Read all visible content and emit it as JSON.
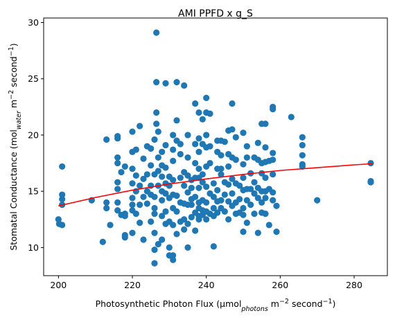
{
  "chart_data": {
    "type": "scatter",
    "title": "AMI PPFD x g_S",
    "xlabel": {
      "prefix": "Photosynthetic Photon Flux (µmol",
      "sub": "photons",
      "mid": " m",
      "sup1": "−2",
      "mid2": " second",
      "sup2": "−1",
      "suffix": ")"
    },
    "ylabel": {
      "prefix": "Stomatal Conductance (mol",
      "sub": "water",
      "mid": " m",
      "sup1": "−2",
      "mid2": " second",
      "sup2": "−1",
      "suffix": ")"
    },
    "xlim": [
      196,
      289
    ],
    "ylim": [
      7.5,
      30.4
    ],
    "xticks": [
      200,
      220,
      240,
      260,
      280
    ],
    "yticks": [
      10,
      15,
      20,
      25,
      30
    ],
    "point_color": "#1f77b4",
    "fit_color": "#ff0000",
    "fit_curve": {
      "x": [
        200,
        210,
        220,
        230,
        240,
        250,
        260,
        270,
        280,
        285
      ],
      "y": [
        13.7,
        14.45,
        15.1,
        15.65,
        16.1,
        16.5,
        16.85,
        17.1,
        17.35,
        17.45
      ]
    },
    "points": [
      [
        200,
        12.5
      ],
      [
        200.2,
        12.1
      ],
      [
        201,
        12
      ],
      [
        201,
        13.8
      ],
      [
        201,
        14.3
      ],
      [
        201,
        14.7
      ],
      [
        201,
        17.2
      ],
      [
        209,
        14.2
      ],
      [
        212,
        10.5
      ],
      [
        213,
        13.5
      ],
      [
        213,
        14.0
      ],
      [
        213,
        19.6
      ],
      [
        214,
        12.0
      ],
      [
        216,
        15.2
      ],
      [
        216,
        15.8
      ],
      [
        216,
        17.5
      ],
      [
        216,
        18.0
      ],
      [
        216,
        19.7
      ],
      [
        216,
        19.9
      ],
      [
        216,
        14.0
      ],
      [
        216,
        13.3
      ],
      [
        217,
        12.9
      ],
      [
        217,
        16.7
      ],
      [
        218,
        12.8
      ],
      [
        218,
        13.0
      ],
      [
        218,
        11.1
      ],
      [
        218,
        10.9
      ],
      [
        218,
        17.2
      ],
      [
        220,
        13.3
      ],
      [
        220,
        14.4
      ],
      [
        220,
        15.7
      ],
      [
        220,
        17.0
      ],
      [
        220,
        18.5
      ],
      [
        220,
        20.3
      ],
      [
        220,
        13.8
      ],
      [
        220,
        11.3
      ],
      [
        221,
        13.0
      ],
      [
        221,
        15.0
      ],
      [
        221,
        16.4
      ],
      [
        221,
        18.7
      ],
      [
        222,
        12.2
      ],
      [
        222,
        15.5
      ],
      [
        222,
        13.8
      ],
      [
        222,
        20.8
      ],
      [
        223,
        10.7
      ],
      [
        223,
        14.5
      ],
      [
        223,
        16.1
      ],
      [
        223,
        17.9
      ],
      [
        224,
        13.9
      ],
      [
        224,
        15.0
      ],
      [
        224,
        16.5
      ],
      [
        224,
        19.0
      ],
      [
        225,
        12.3
      ],
      [
        225,
        14.7
      ],
      [
        225,
        15.5
      ],
      [
        225,
        17.3
      ],
      [
        225,
        18.8
      ],
      [
        226,
        13.5
      ],
      [
        226,
        16.5
      ],
      [
        226,
        19.6
      ],
      [
        226,
        8.6
      ],
      [
        226,
        9.8
      ],
      [
        226,
        11.3
      ],
      [
        226,
        13.0
      ],
      [
        226.5,
        29.1
      ],
      [
        226.5,
        24.7
      ],
      [
        226.5,
        22.0
      ],
      [
        226.5,
        21.0
      ],
      [
        226,
        14.5
      ],
      [
        227,
        15.5
      ],
      [
        227,
        16.8
      ],
      [
        227,
        20.3
      ],
      [
        227,
        18.0
      ],
      [
        227,
        10.3
      ],
      [
        228,
        10.7
      ],
      [
        228,
        12.8
      ],
      [
        228,
        14.2
      ],
      [
        228,
        15.0
      ],
      [
        228,
        16.3
      ],
      [
        228,
        17.3
      ],
      [
        228,
        18.5
      ],
      [
        229,
        12.1
      ],
      [
        229,
        13.2
      ],
      [
        229,
        14.8
      ],
      [
        229,
        15.7
      ],
      [
        229,
        17.1
      ],
      [
        229,
        19.1
      ],
      [
        229,
        24.6
      ],
      [
        230,
        9.3
      ],
      [
        230,
        10.0
      ],
      [
        230,
        12.3
      ],
      [
        230,
        14.4
      ],
      [
        230,
        15.5
      ],
      [
        230,
        16.3
      ],
      [
        231,
        8.9
      ],
      [
        231,
        9.3
      ],
      [
        231,
        12.0
      ],
      [
        231,
        13.5
      ],
      [
        231,
        14.7
      ],
      [
        231,
        16.0
      ],
      [
        231,
        17.7
      ],
      [
        231,
        18.7
      ],
      [
        231,
        20.0
      ],
      [
        232,
        24.7
      ],
      [
        232,
        21.3
      ],
      [
        232,
        19.5
      ],
      [
        232,
        14.6
      ],
      [
        232,
        13.2
      ],
      [
        232,
        11.2
      ],
      [
        233,
        12.3
      ],
      [
        233,
        14.0
      ],
      [
        233,
        16.2
      ],
      [
        233,
        18.3
      ],
      [
        233,
        19.2
      ],
      [
        234,
        24.4
      ],
      [
        234,
        16.7
      ],
      [
        234,
        15.5
      ],
      [
        234,
        13.9
      ],
      [
        234,
        12.5
      ],
      [
        234,
        11.6
      ],
      [
        235,
        10.0
      ],
      [
        235,
        12.1
      ],
      [
        235,
        13.8
      ],
      [
        235,
        14.9
      ],
      [
        235,
        16.4
      ],
      [
        235,
        18.0
      ],
      [
        235,
        20.0
      ],
      [
        236,
        13.8
      ],
      [
        236,
        15.3
      ],
      [
        236,
        16.0
      ],
      [
        236,
        14.3
      ],
      [
        236,
        12.7
      ],
      [
        237,
        22.8
      ],
      [
        237,
        19.2
      ],
      [
        237,
        17.5
      ],
      [
        237,
        16.2
      ],
      [
        237,
        14.5
      ],
      [
        237,
        13.1
      ],
      [
        237,
        11.5
      ],
      [
        238,
        12.5
      ],
      [
        238,
        13.5
      ],
      [
        238,
        14.0
      ],
      [
        238,
        15.3
      ],
      [
        238,
        16.2
      ],
      [
        238,
        17.0
      ],
      [
        238,
        18.5
      ],
      [
        238,
        19.7
      ],
      [
        238,
        22.0
      ],
      [
        238,
        12.8
      ],
      [
        239,
        21.4
      ],
      [
        239,
        19.2
      ],
      [
        239,
        16.5
      ],
      [
        239,
        15.8
      ],
      [
        239,
        14.2
      ],
      [
        239,
        13.3
      ],
      [
        239,
        12.9
      ],
      [
        240,
        23.3
      ],
      [
        240,
        22.0
      ],
      [
        240,
        20.0
      ],
      [
        240,
        18.9
      ],
      [
        240,
        17.2
      ],
      [
        240,
        15.4
      ],
      [
        240,
        14.0
      ],
      [
        240,
        13.2
      ],
      [
        240,
        12.5
      ],
      [
        241,
        21.9
      ],
      [
        241,
        19.0
      ],
      [
        241,
        17.5
      ],
      [
        241,
        14.8
      ],
      [
        241,
        13.0
      ],
      [
        242,
        15.7
      ],
      [
        242,
        14.5
      ],
      [
        242,
        13.5
      ],
      [
        242,
        12.8
      ],
      [
        242,
        10.1
      ],
      [
        243,
        19.5
      ],
      [
        243,
        18.5
      ],
      [
        243,
        17.0
      ],
      [
        243,
        15.1
      ],
      [
        243,
        14.1
      ],
      [
        243,
        13.1
      ],
      [
        244,
        19.5
      ],
      [
        244,
        18.2
      ],
      [
        244,
        17.0
      ],
      [
        244,
        16.5
      ],
      [
        244,
        14.2
      ],
      [
        244,
        13.5
      ],
      [
        245,
        19.4
      ],
      [
        245,
        15.8
      ],
      [
        245,
        14.7
      ],
      [
        245,
        13.2
      ],
      [
        246,
        20.4
      ],
      [
        246,
        18.3
      ],
      [
        246,
        17.2
      ],
      [
        246,
        15.6
      ],
      [
        246,
        14.1
      ],
      [
        246,
        12.5
      ],
      [
        247,
        22.8
      ],
      [
        247,
        20.5
      ],
      [
        247,
        18.0
      ],
      [
        247,
        16.1
      ],
      [
        247,
        14.8
      ],
      [
        247,
        13.7
      ],
      [
        248,
        19.8
      ],
      [
        248,
        17.8
      ],
      [
        248,
        15.7
      ],
      [
        248,
        14.0
      ],
      [
        248,
        13.0
      ],
      [
        249,
        15.5
      ],
      [
        249,
        14.3
      ],
      [
        249,
        13.1
      ],
      [
        250,
        20.2
      ],
      [
        250,
        17.4
      ],
      [
        250,
        16.2
      ],
      [
        250,
        15.1
      ],
      [
        250,
        13.5
      ],
      [
        250,
        12.9
      ],
      [
        250,
        11.4
      ],
      [
        251,
        19.0
      ],
      [
        251,
        18.0
      ],
      [
        251,
        15.2
      ],
      [
        251,
        14.2
      ],
      [
        251,
        12.2
      ],
      [
        252,
        16.6
      ],
      [
        252,
        15.2
      ],
      [
        252,
        13.8
      ],
      [
        253,
        18.0
      ],
      [
        253,
        15.8
      ],
      [
        253,
        14.8
      ],
      [
        253,
        13.0
      ],
      [
        254,
        19.3
      ],
      [
        254,
        17.8
      ],
      [
        254,
        15.3
      ],
      [
        254,
        14.4
      ],
      [
        254,
        11.3
      ],
      [
        255,
        21.0
      ],
      [
        255,
        17.5
      ],
      [
        255,
        16.6
      ],
      [
        255,
        15.0
      ],
      [
        255,
        14.0
      ],
      [
        255,
        13.1
      ],
      [
        256,
        21.0
      ],
      [
        256,
        18.9
      ],
      [
        256,
        17.6
      ],
      [
        256,
        16.2
      ],
      [
        256,
        15.0
      ],
      [
        256,
        14.4
      ],
      [
        256,
        13.0
      ],
      [
        257,
        17.7
      ],
      [
        257,
        15.2
      ],
      [
        257,
        12.0
      ],
      [
        258,
        22.5
      ],
      [
        258,
        22.3
      ],
      [
        258,
        18.4
      ],
      [
        258,
        17.8
      ],
      [
        258,
        16.5
      ],
      [
        258,
        14.9
      ],
      [
        258,
        14.2
      ],
      [
        259,
        13.7
      ],
      [
        259,
        11.4
      ],
      [
        263,
        21.6
      ],
      [
        266,
        19.8
      ],
      [
        266,
        19.1
      ],
      [
        266,
        18.2
      ],
      [
        266,
        17.4
      ],
      [
        266,
        17.2
      ],
      [
        270,
        14.2
      ],
      [
        284.5,
        17.5
      ],
      [
        284.5,
        15.9
      ],
      [
        284.5,
        15.8
      ]
    ]
  }
}
